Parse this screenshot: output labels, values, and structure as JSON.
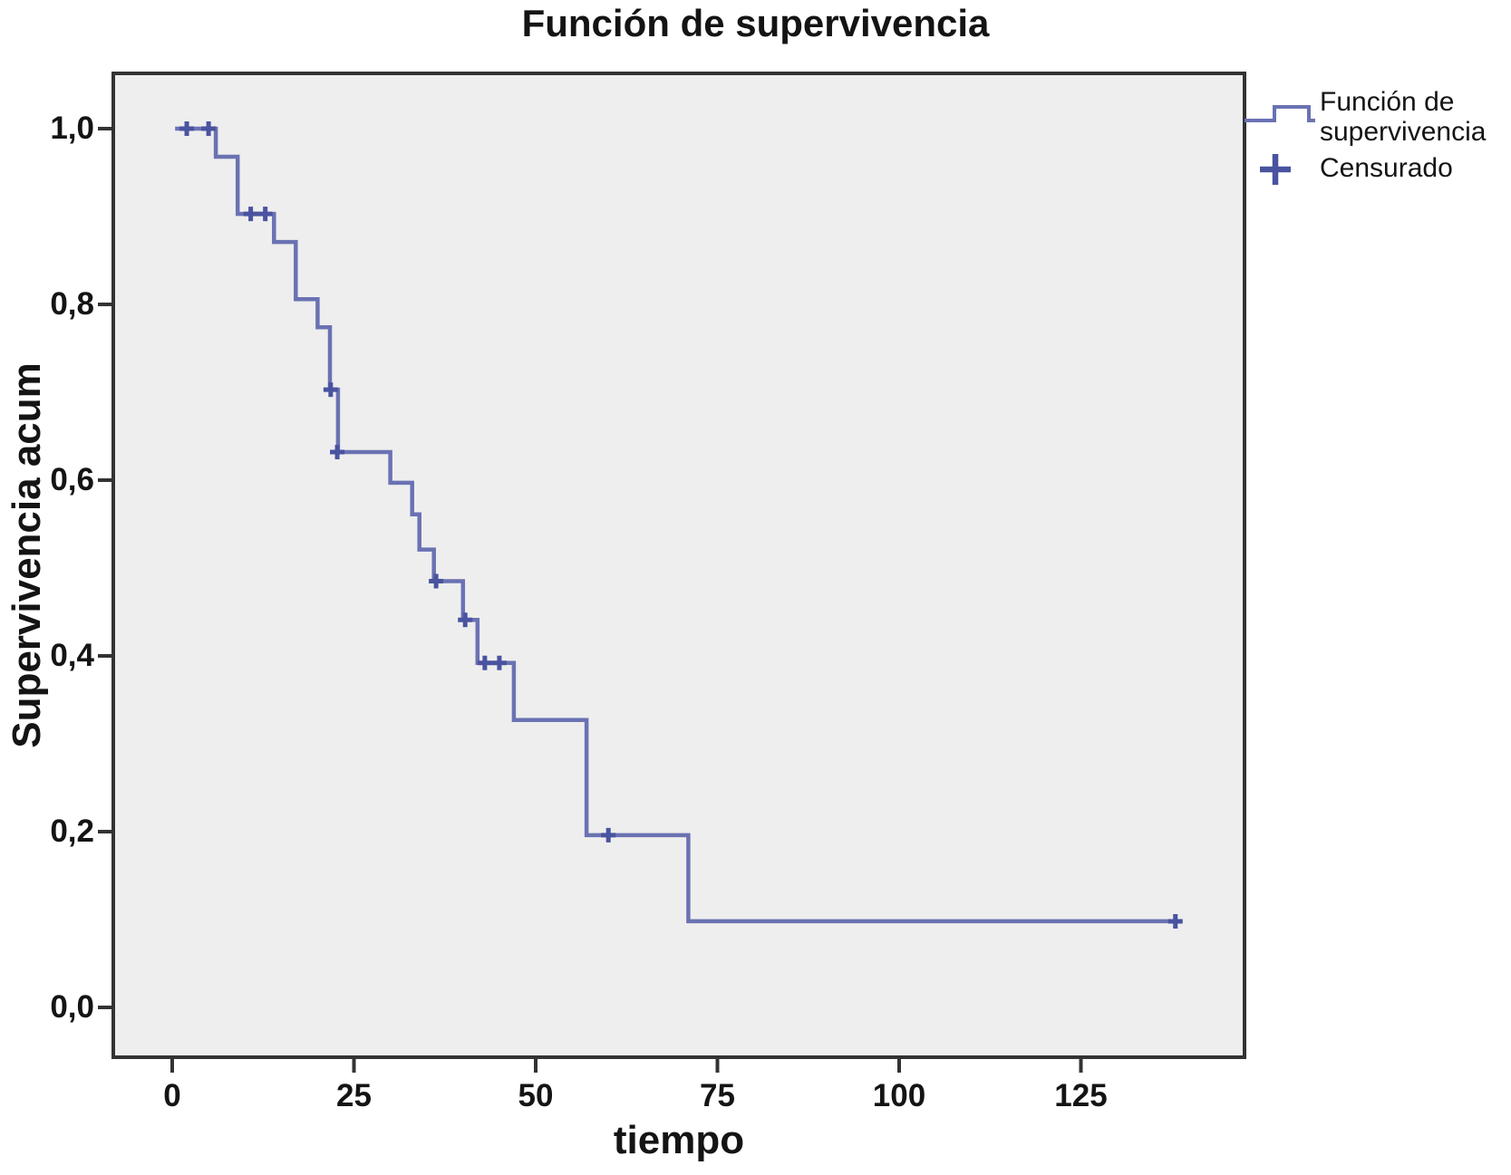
{
  "title": "Función de supervivencia",
  "axes": {
    "x_label": "tiempo",
    "y_label": "Supervivencia acum",
    "x_tick_labels": [
      "0",
      "25",
      "50",
      "75",
      "100",
      "125"
    ],
    "y_tick_labels": [
      "0,0",
      "0,2",
      "0,4",
      "0,6",
      "0,8",
      "1,0"
    ]
  },
  "legend": {
    "line_label_line1": "Función de",
    "line_label_line2": "supervivencia",
    "censored_label": "Censurado",
    "line_symbol": "step-line",
    "censored_symbol": "plus-marker"
  },
  "colors": {
    "line": "#6a72b3",
    "censor": "#4a53a0",
    "plot_bg": "#eeeeee",
    "border": "#333333",
    "tick": "#333333",
    "text": "#141414"
  },
  "chart_data": {
    "type": "line",
    "subtype": "kaplan-meier-step",
    "title": "Función de supervivencia",
    "xlabel": "tiempo",
    "ylabel": "Supervivencia acum",
    "xlim": [
      -7.9,
      147.3
    ],
    "ylim": [
      -0.055,
      1.061
    ],
    "x_ticks": [
      0,
      25,
      50,
      75,
      100,
      125
    ],
    "y_ticks": [
      0.0,
      0.2,
      0.4,
      0.6,
      0.8,
      1.0
    ],
    "grid": false,
    "legend_position": "top-right-outside",
    "series": [
      {
        "name": "Función de supervivencia",
        "steps": [
          [
            0.4,
            1.0
          ],
          [
            6,
            1.0
          ],
          [
            6,
            0.968
          ],
          [
            9,
            0.968
          ],
          [
            9,
            0.903
          ],
          [
            14,
            0.903
          ],
          [
            14,
            0.871
          ],
          [
            17,
            0.871
          ],
          [
            17,
            0.806
          ],
          [
            20,
            0.806
          ],
          [
            20,
            0.774
          ],
          [
            21.7,
            0.774
          ],
          [
            21.7,
            0.703
          ],
          [
            22.8,
            0.703
          ],
          [
            22.8,
            0.632
          ],
          [
            30,
            0.632
          ],
          [
            30,
            0.597
          ],
          [
            33,
            0.597
          ],
          [
            33,
            0.561
          ],
          [
            34,
            0.561
          ],
          [
            34,
            0.521
          ],
          [
            36,
            0.521
          ],
          [
            36,
            0.485
          ],
          [
            40,
            0.485
          ],
          [
            40,
            0.441
          ],
          [
            42,
            0.441
          ],
          [
            42,
            0.392
          ],
          [
            47,
            0.392
          ],
          [
            47,
            0.327
          ],
          [
            57,
            0.327
          ],
          [
            57,
            0.196
          ],
          [
            71,
            0.196
          ],
          [
            71,
            0.098
          ],
          [
            138.5,
            0.098
          ]
        ]
      }
    ],
    "censored": [
      [
        2,
        1.0
      ],
      [
        5,
        1.0
      ],
      [
        10.8,
        0.903
      ],
      [
        12.8,
        0.903
      ],
      [
        21.8,
        0.703
      ],
      [
        22.7,
        0.632
      ],
      [
        36.3,
        0.485
      ],
      [
        40.3,
        0.441
      ],
      [
        43,
        0.392
      ],
      [
        45,
        0.392
      ],
      [
        60,
        0.196
      ],
      [
        138,
        0.098
      ]
    ]
  }
}
